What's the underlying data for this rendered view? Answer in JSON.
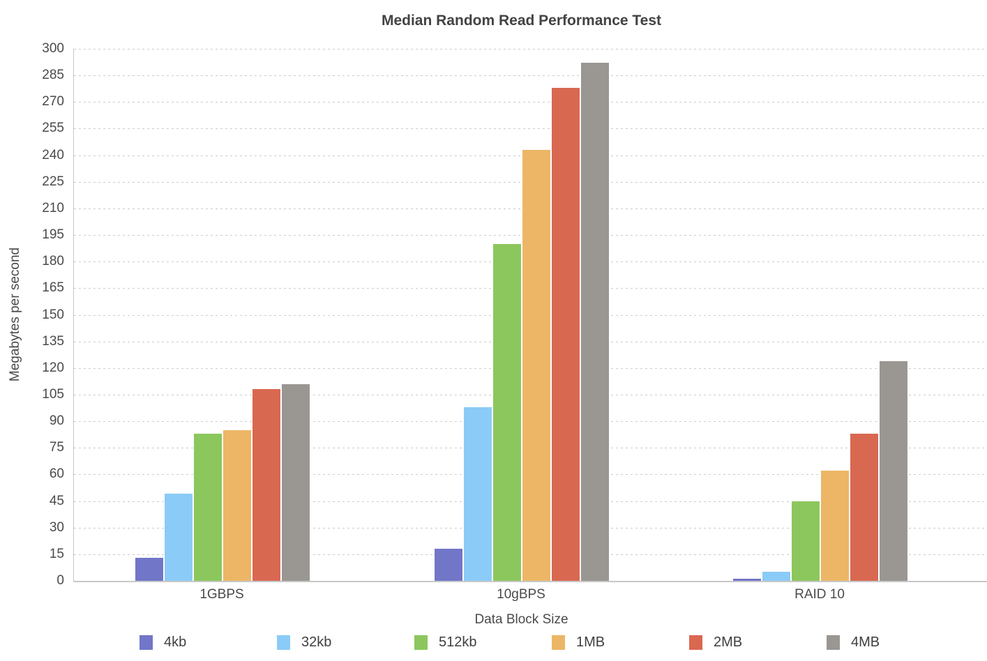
{
  "chart_data": {
    "type": "bar",
    "title": "Median Random Read Performance Test",
    "xlabel": "Data Block Size",
    "ylabel": "Megabytes per second",
    "categories": [
      "1GBPS",
      "10gBPS",
      "RAID 10"
    ],
    "series": [
      {
        "name": "4kb",
        "color": "#7176c8",
        "values": [
          13,
          18,
          1
        ]
      },
      {
        "name": "32kb",
        "color": "#8bcbf7",
        "values": [
          49,
          98,
          5
        ]
      },
      {
        "name": "512kb",
        "color": "#8cc75d",
        "values": [
          83,
          190,
          45
        ]
      },
      {
        "name": "1MB",
        "color": "#ecb666",
        "values": [
          85,
          243,
          62
        ]
      },
      {
        "name": "2MB",
        "color": "#d96851",
        "values": [
          108,
          278,
          83
        ]
      },
      {
        "name": "4MB",
        "color": "#9a9792",
        "values": [
          111,
          292,
          124
        ]
      }
    ],
    "ylim": [
      0,
      300
    ],
    "yticks": [
      0,
      15,
      30,
      45,
      60,
      75,
      90,
      105,
      120,
      135,
      150,
      165,
      180,
      195,
      210,
      225,
      240,
      255,
      270,
      285,
      300
    ],
    "grid": "horizontal-dashed",
    "legend_position": "bottom",
    "axis_color": "#c8c8c8",
    "grid_color": "#cbcbcb",
    "text_color": "#4a4a4a"
  }
}
